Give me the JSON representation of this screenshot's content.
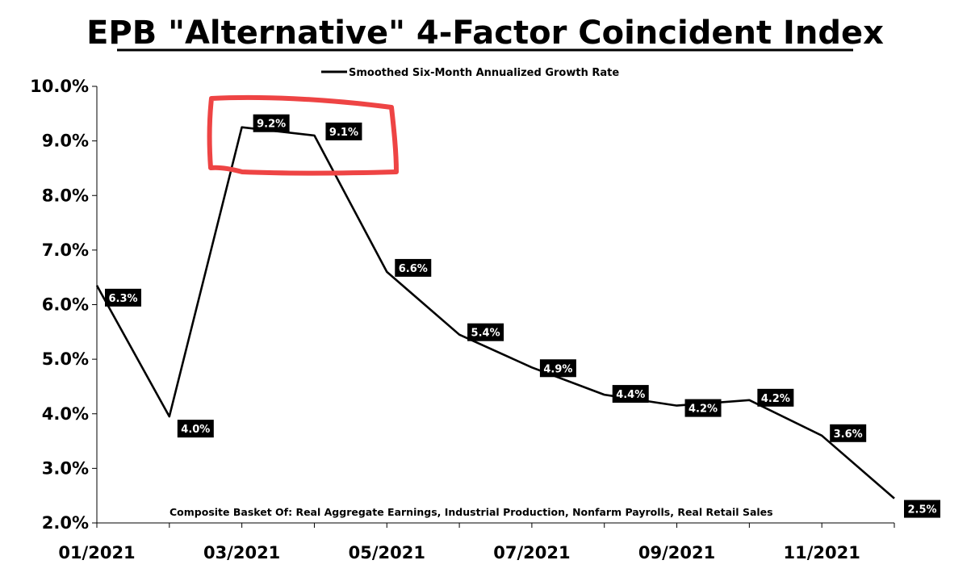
{
  "chart_data": {
    "type": "line",
    "title": "EPB \"Alternative\" 4-Factor Coincident Index",
    "series": [
      {
        "name": "Smoothed Six-Month Annualized Growth Rate",
        "color": "#000000",
        "values": [
          6.35,
          3.95,
          9.25,
          9.1,
          6.6,
          5.45,
          4.85,
          4.35,
          4.15,
          4.25,
          3.6,
          2.45
        ],
        "labels": [
          "6.3%",
          "4.0%",
          "9.2%",
          "9.1%",
          "6.6%",
          "5.4%",
          "4.9%",
          "4.4%",
          "4.2%",
          "4.2%",
          "3.6%",
          "2.5%"
        ]
      }
    ],
    "x": [
      "01/2021",
      "02/2021",
      "03/2021",
      "04/2021",
      "05/2021",
      "06/2021",
      "07/2021",
      "08/2021",
      "09/2021",
      "10/2021",
      "11/2021",
      "12/2021"
    ],
    "x_tick_labels": [
      "01/2021",
      "03/2021",
      "05/2021",
      "07/2021",
      "09/2021",
      "11/2021"
    ],
    "y_tick_labels": [
      "10.0%",
      "9.0%",
      "8.0%",
      "7.0%",
      "6.0%",
      "5.0%",
      "4.0%",
      "3.0%",
      "2.0%"
    ],
    "ylim": [
      2.0,
      10.0
    ],
    "xlabel": "",
    "ylabel": "",
    "grid": false,
    "legend_placement": "top-center",
    "annotation": "Composite Basket Of: Real Aggregate Earnings, Industrial Production, Nonfarm Payrolls, Real Retail Sales",
    "highlight": {
      "shape": "hand-drawn rectangle",
      "color": "#ee4444",
      "encloses": [
        "9.2%",
        "9.1%"
      ]
    },
    "label_box_color": "#000000",
    "label_text_color": "#ffffff"
  }
}
